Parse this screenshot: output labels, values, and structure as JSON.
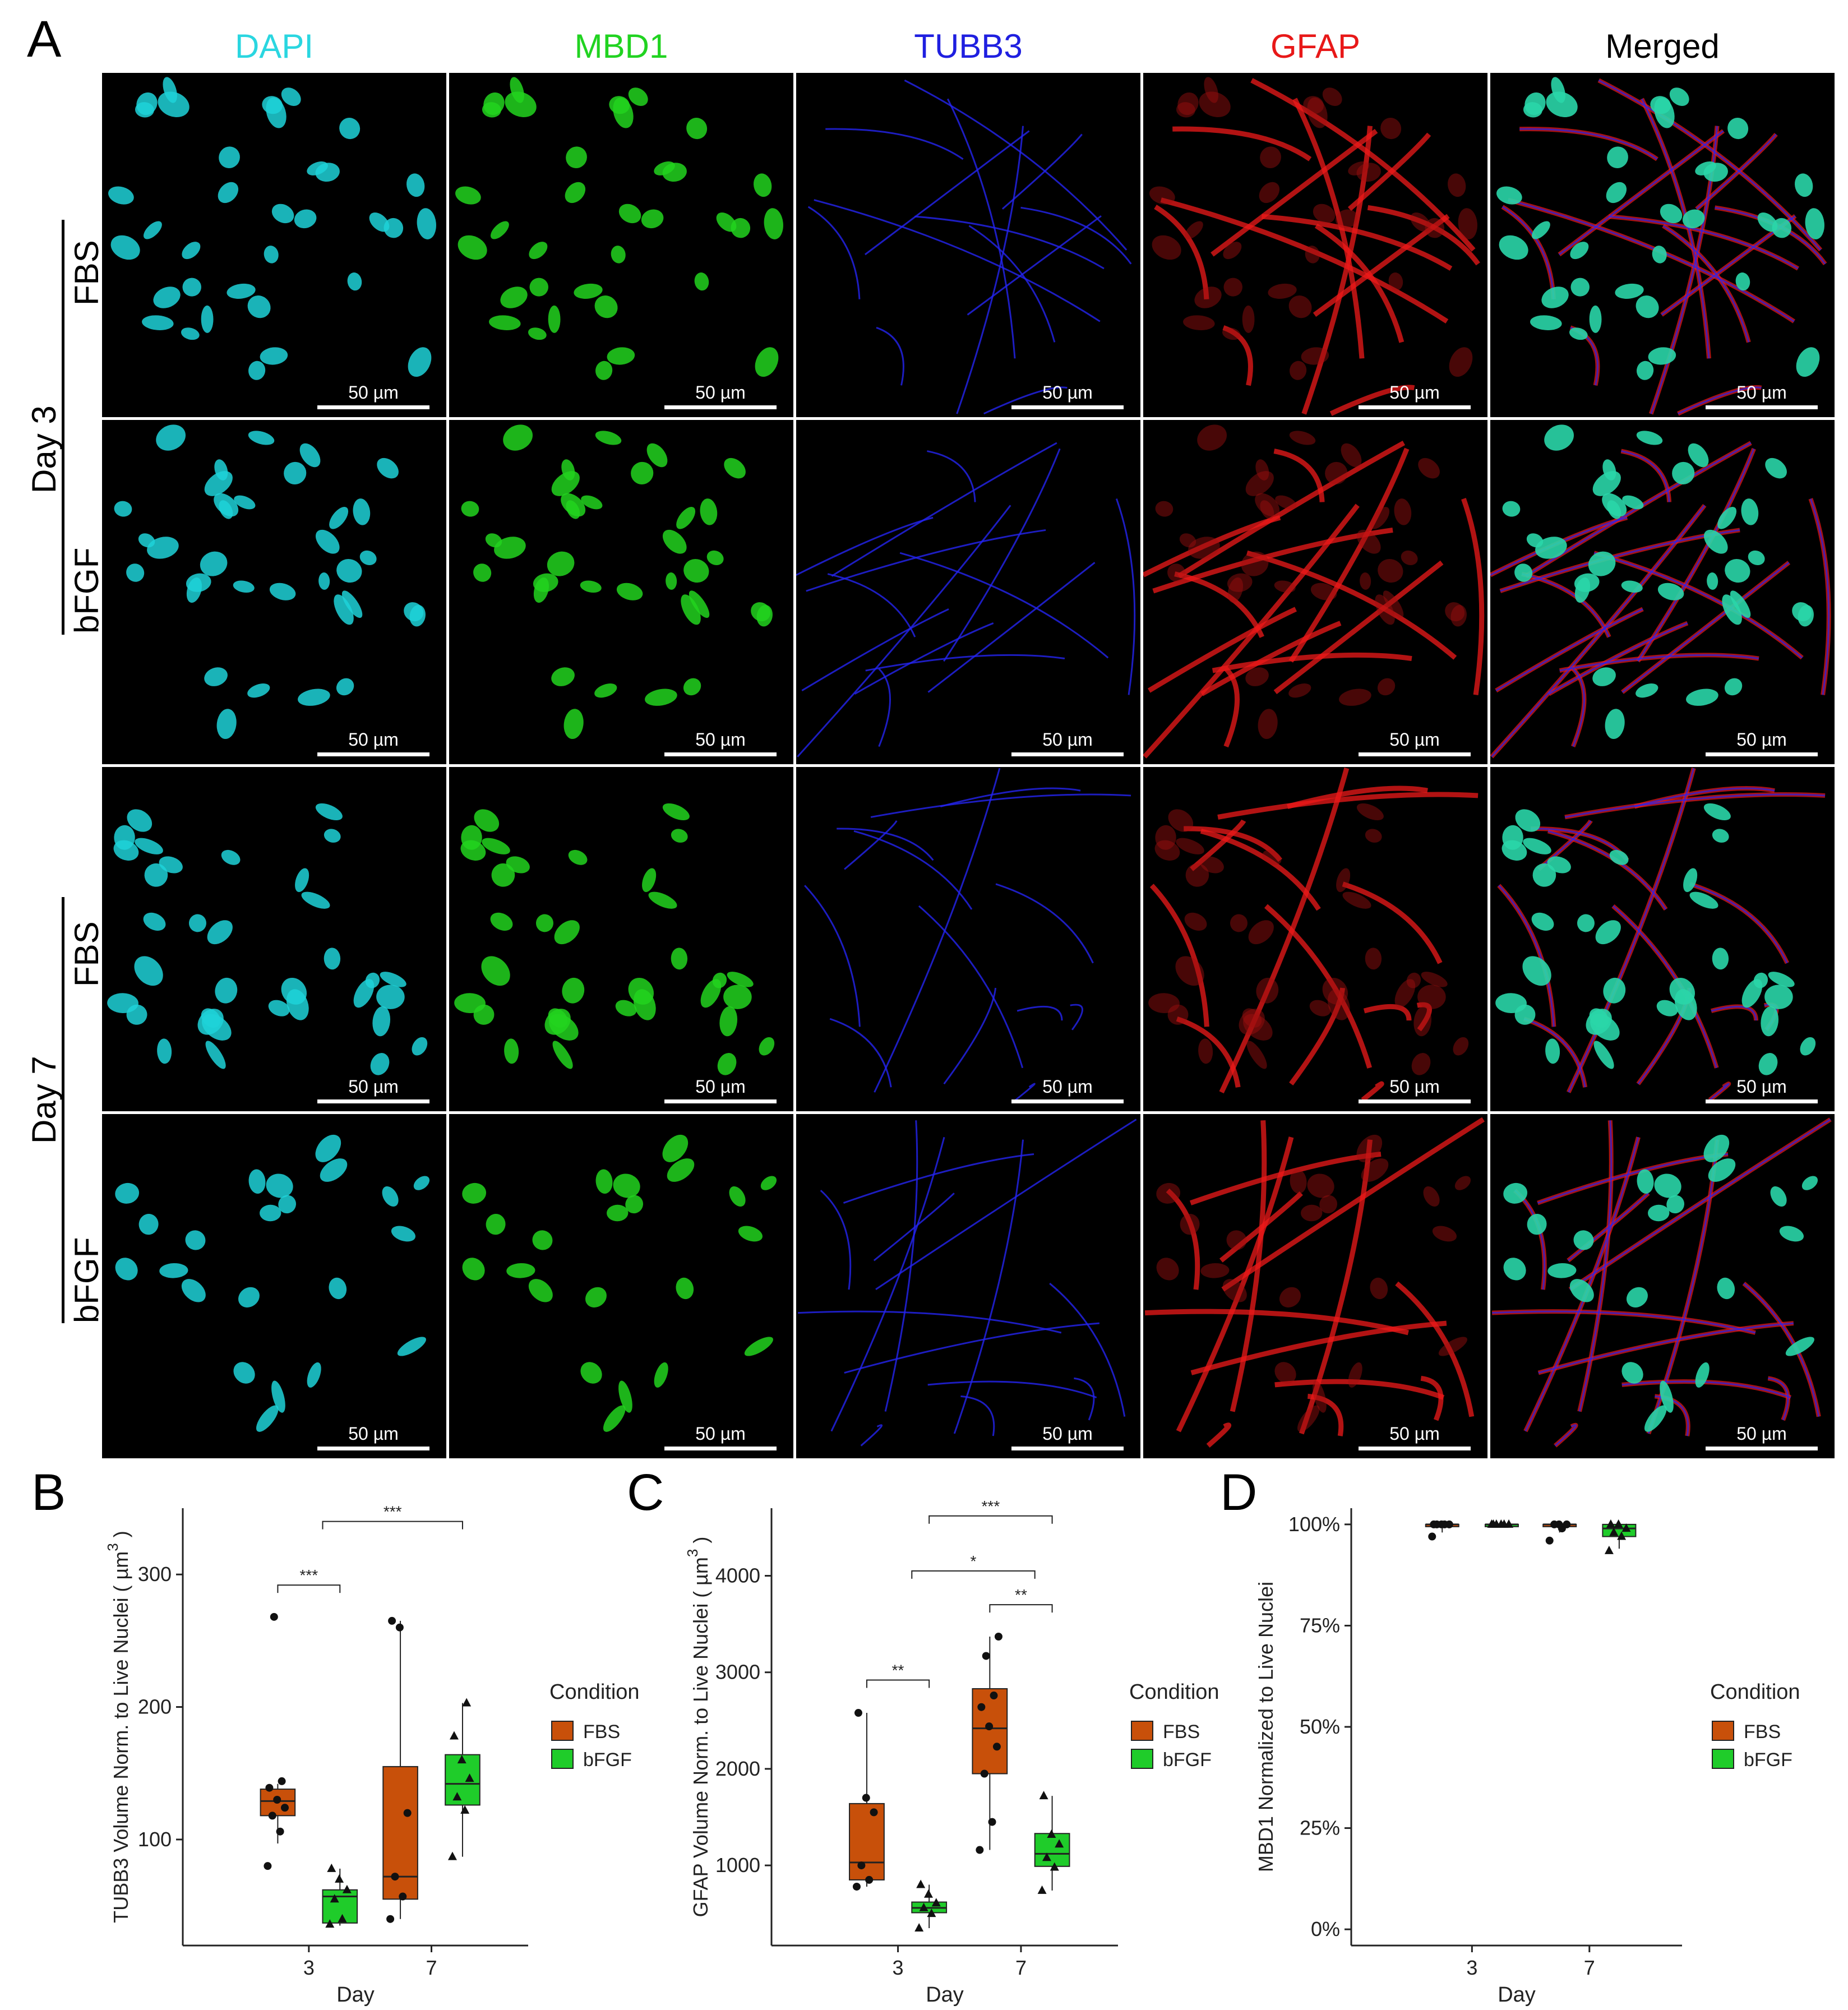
{
  "panel_a": {
    "letter": "A",
    "columns": [
      {
        "label": "DAPI",
        "color": "#2ad6e0"
      },
      {
        "label": "MBD1",
        "color": "#21d321"
      },
      {
        "label": "TUBB3",
        "color": "#1f1fe0"
      },
      {
        "label": "GFAP",
        "color": "#e81818"
      },
      {
        "label": "Merged",
        "color": "#000000"
      }
    ],
    "day_labels": [
      "Day 3",
      "Day 7"
    ],
    "condition_labels": [
      "FBS",
      "bFGF",
      "FBS",
      "bFGF"
    ],
    "scale_bar_label": "50 µm"
  },
  "panel_b": {
    "letter": "B"
  },
  "panel_c": {
    "letter": "C"
  },
  "panel_d": {
    "letter": "D"
  },
  "chart_data": [
    {
      "type": "box",
      "id": "B",
      "xlabel": "Day",
      "ylabel": "TUBB3 Volume Norm. to Live Nuclei ( µm",
      "ylabel_sup": "3",
      "ylabel_tail": ")",
      "categories": [
        "3",
        "7"
      ],
      "yticks": [
        100,
        200,
        300
      ],
      "ylim": [
        20,
        350
      ],
      "legend_title": "Condition",
      "series": [
        {
          "name": "FBS",
          "color": "#c8500a",
          "boxes": [
            {
              "q1": 118,
              "median": 129,
              "q3": 138,
              "min": 97,
              "max": 142,
              "points": [
                80,
                106,
                118,
                124,
                130,
                139,
                144,
                268
              ]
            },
            {
              "q1": 55,
              "median": 72,
              "q3": 155,
              "min": 40,
              "max": 265,
              "points": [
                40,
                57,
                72,
                120,
                260,
                265
              ]
            }
          ]
        },
        {
          "name": "bFGF",
          "color": "#1fcc2a",
          "boxes": [
            {
              "q1": 37,
              "median": 57,
              "q3": 62,
              "min": 35,
              "max": 78,
              "points": [
                36,
                40,
                55,
                62,
                70,
                78
              ]
            },
            {
              "q1": 126,
              "median": 142,
              "q3": 164,
              "min": 87,
              "max": 203,
              "points": [
                87,
                122,
                132,
                146,
                160,
                178,
                203
              ]
            }
          ]
        }
      ],
      "significance": [
        {
          "label": "***",
          "from": "3-FBS",
          "to": "3-bFGF",
          "y": 292
        },
        {
          "label": "***",
          "from": "3-mid",
          "to": "7-bFGF",
          "y": 340
        }
      ]
    },
    {
      "type": "box",
      "id": "C",
      "xlabel": "Day",
      "ylabel": "GFAP Volume Norm. to Live Nuclei ( µm",
      "ylabel_sup": "3",
      "ylabel_tail": ")",
      "categories": [
        "3",
        "7"
      ],
      "yticks": [
        1000,
        2000,
        3000,
        4000
      ],
      "ylim": [
        170,
        4700
      ],
      "legend_title": "Condition",
      "series": [
        {
          "name": "FBS",
          "color": "#c8500a",
          "boxes": [
            {
              "q1": 850,
              "median": 1030,
              "q3": 1640,
              "min": 780,
              "max": 2580,
              "points": [
                780,
                850,
                1000,
                1550,
                1700,
                2580
              ]
            },
            {
              "q1": 1950,
              "median": 2420,
              "q3": 2830,
              "min": 1160,
              "max": 3370,
              "points": [
                1160,
                1450,
                1950,
                2230,
                2440,
                2640,
                2760,
                3170,
                3370
              ]
            }
          ]
        },
        {
          "name": "bFGF",
          "color": "#1fcc2a",
          "boxes": [
            {
              "q1": 510,
              "median": 560,
              "q3": 620,
              "min": 350,
              "max": 800,
              "points": [
                350,
                500,
                560,
                610,
                700,
                800
              ]
            },
            {
              "q1": 990,
              "median": 1120,
              "q3": 1330,
              "min": 740,
              "max": 1720,
              "points": [
                740,
                980,
                1080,
                1220,
                1320,
                1720
              ]
            }
          ]
        }
      ],
      "significance": [
        {
          "label": "**",
          "from": "3-FBS",
          "to": "3-bFGF",
          "y": 2920
        },
        {
          "label": "*",
          "from": "3-mid",
          "to": "7-mid",
          "y": 4050
        },
        {
          "label": "**",
          "from": "7-FBS",
          "to": "7-bFGF",
          "y": 3700
        },
        {
          "label": "***",
          "from": "3-bFGF",
          "to": "7-bFGF",
          "y": 4620
        }
      ]
    },
    {
      "type": "box",
      "id": "D",
      "xlabel": "Day",
      "ylabel": "MBD1 Normalized to Live Nuclei",
      "categories": [
        "3",
        "7"
      ],
      "yticks": [
        "0%",
        "25%",
        "50%",
        "75%",
        "100%"
      ],
      "ytick_values": [
        0,
        25,
        50,
        75,
        100
      ],
      "ylim": [
        -4,
        104
      ],
      "legend_title": "Condition",
      "series": [
        {
          "name": "FBS",
          "color": "#c8500a",
          "boxes": [
            {
              "q1": 100,
              "median": 100,
              "q3": 100,
              "min": 98,
              "max": 100,
              "points": [
                97,
                100,
                100,
                100,
                100,
                100
              ]
            },
            {
              "q1": 100,
              "median": 100,
              "q3": 100,
              "min": 98,
              "max": 100,
              "points": [
                96,
                99,
                100,
                100,
                100
              ]
            }
          ]
        },
        {
          "name": "bFGF",
          "color": "#1fcc2a",
          "boxes": [
            {
              "q1": 100,
              "median": 100,
              "q3": 100,
              "min": 100,
              "max": 100,
              "points": [
                100,
                100,
                100,
                100,
                100,
                100
              ]
            },
            {
              "q1": 97,
              "median": 99,
              "q3": 100,
              "min": 94,
              "max": 100,
              "points": [
                93.5,
                97,
                98,
                99,
                100,
                100
              ]
            }
          ]
        }
      ]
    }
  ]
}
